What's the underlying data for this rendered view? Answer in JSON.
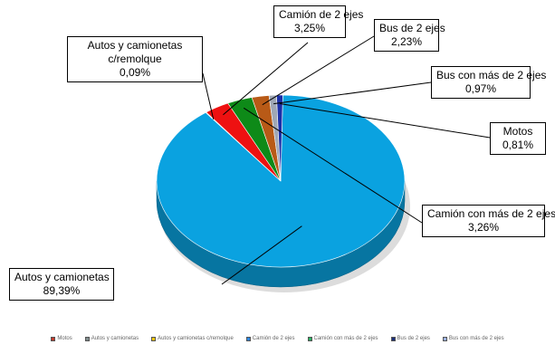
{
  "chart_data": {
    "type": "pie",
    "style": "3d",
    "slices": [
      {
        "name": "Autos y camionetas",
        "value": 89.39,
        "label": "89,39%",
        "color": "#0aa2e0"
      },
      {
        "name": "Autos y camionetas c/remolque",
        "value": 0.09,
        "label": "0,09%",
        "color": "#f2b300"
      },
      {
        "name": "Camión de 2 ejes",
        "value": 3.25,
        "label": "3,25%",
        "color": "#ee1111"
      },
      {
        "name": "Camión con más de 2 ejes",
        "value": 3.26,
        "label": "3,26%",
        "color": "#0e8a18"
      },
      {
        "name": "Bus de 2 ejes",
        "value": 2.23,
        "label": "2,23%",
        "color": "#b85a17"
      },
      {
        "name": "Bus con más de 2 ejes",
        "value": 0.97,
        "label": "0,97%",
        "color": "#9fa7b5"
      },
      {
        "name": "Motos",
        "value": 0.81,
        "label": "0,81%",
        "color": "#1b2fa8"
      }
    ],
    "legend": {
      "placement": "bottom",
      "items": [
        {
          "label": "Motos",
          "color": "#c0392b"
        },
        {
          "label": "Autos y camionetas",
          "color": "#7f8c8d"
        },
        {
          "label": "Autos y camionetas c/remolque",
          "color": "#f1c40f"
        },
        {
          "label": "Camión de 2 ejes",
          "color": "#2e86de"
        },
        {
          "label": "Camión con más de 2 ejes",
          "color": "#27ae60"
        },
        {
          "label": "Bus de 2 ejes",
          "color": "#1b2f7a"
        },
        {
          "label": "Bus con más de 2 ejes",
          "color": "#9ab0e0"
        }
      ]
    }
  }
}
